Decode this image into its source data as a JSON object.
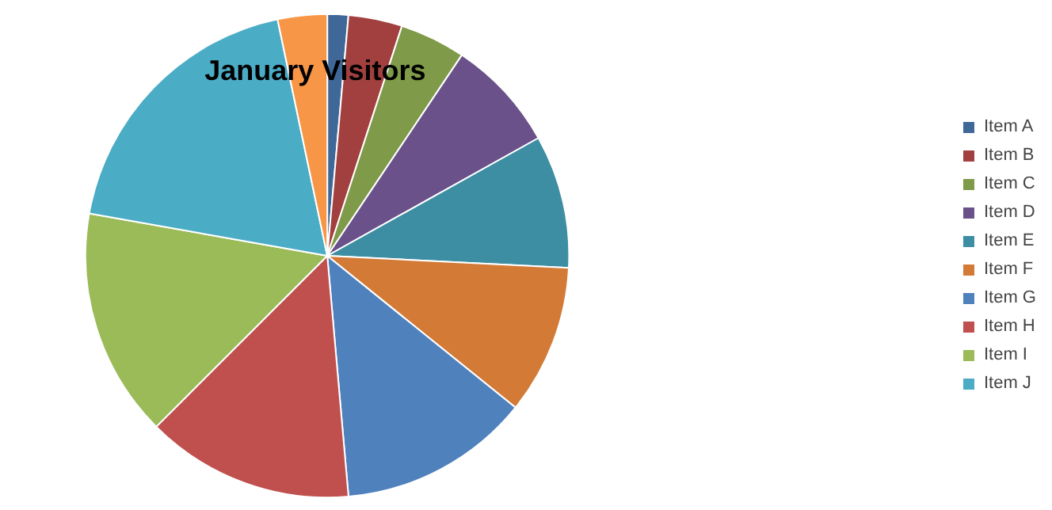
{
  "chart_data": {
    "type": "pie",
    "title": "January Visitors",
    "categories": [
      "Item A",
      "Item B",
      "Item C",
      "Item D",
      "Item E",
      "Item F",
      "Item G",
      "Item H",
      "Item I",
      "Item J",
      null
    ],
    "values": [
      1.4,
      3.6,
      4.4,
      7.5,
      8.9,
      10,
      12.8,
      13.9,
      15.3,
      18.9,
      3.3
    ],
    "colors": [
      "#3f6797",
      "#a1403e",
      "#7f9a48",
      "#6a518a",
      "#3d8ea3",
      "#d27a36",
      "#4f81bd",
      "#c0504d",
      "#9bbb59",
      "#4bacc6",
      "#f79646"
    ],
    "legend": "right"
  }
}
